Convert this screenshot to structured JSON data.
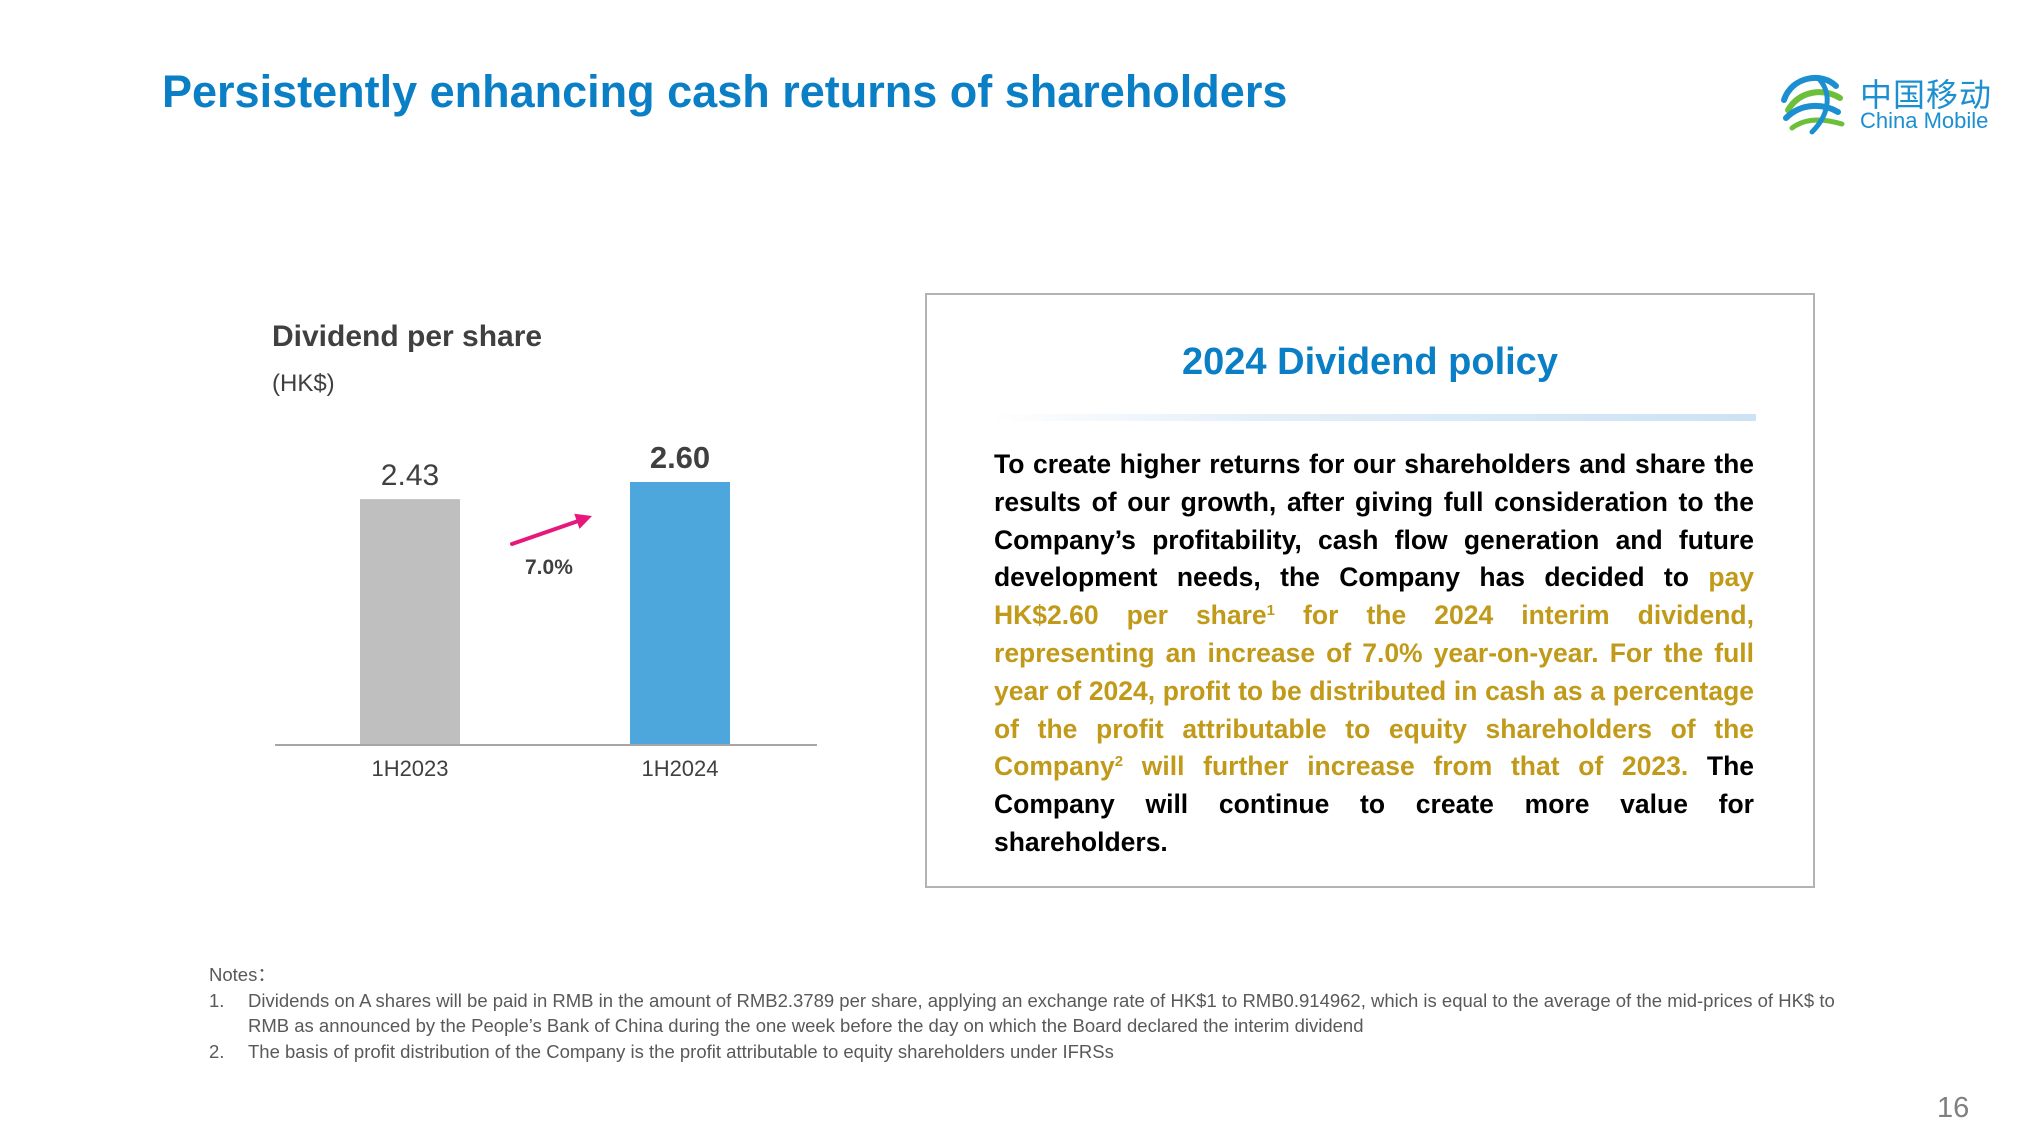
{
  "header": {
    "title": "Persistently enhancing cash returns of shareholders",
    "logo_cn": "中国移动",
    "logo_en": "China Mobile"
  },
  "chart_panel": {
    "title": "Dividend per share",
    "unit": "(HK$)",
    "growth_label": "7.0%"
  },
  "chart_data": {
    "type": "bar",
    "title": "Dividend per share",
    "ylabel": "(HK$)",
    "xlabel": "",
    "categories": [
      "1H2023",
      "1H2024"
    ],
    "values": [
      2.43,
      2.6
    ],
    "data_labels": [
      "2.43",
      "2.60"
    ],
    "bar_colors": [
      "#bfbfbf",
      "#4da6dc"
    ],
    "annotation": "7.0%",
    "ylim": [
      0,
      2.8
    ],
    "grid": false,
    "legend": "none"
  },
  "policy": {
    "title": "2024 Dividend policy",
    "text_intro": "To create higher returns for our shareholders and share the results of our growth, after giving full consideration to the Company’s profitability, cash flow generation and future development needs, the Company has decided to ",
    "text_hl1": "pay HK$2.60 per share",
    "sup1": "1",
    "text_hl2": " for the 2024 interim dividend, representing an increase of 7.0% year-on-year. For the full year of 2024, profit to be distributed in cash as a percentage of the profit attributable to equity shareholders of the Company",
    "sup2": "2",
    "text_hl3": " will further increase from that of 2023.",
    "text_outro": " The Company will continue to create more value for shareholders."
  },
  "notes": {
    "heading": "Notes：",
    "items": [
      {
        "num": "1.",
        "text": "Dividends on A shares will be paid in RMB in the amount of RMB2.3789 per share, applying an exchange rate of HK$1 to RMB0.914962, which is equal to the average of the mid-prices of HK$ to RMB as announced by the People’s Bank of China during the one week before the day on which the Board declared the interim dividend"
      },
      {
        "num": "2.",
        "text": "The basis of profit distribution of the Company is the profit attributable to equity shareholders under IFRSs"
      }
    ]
  },
  "page_number": "16",
  "colors": {
    "brand_blue": "#0a7fc5",
    "highlight_gold": "#c19a1a",
    "arrow_magenta": "#e6187b"
  }
}
